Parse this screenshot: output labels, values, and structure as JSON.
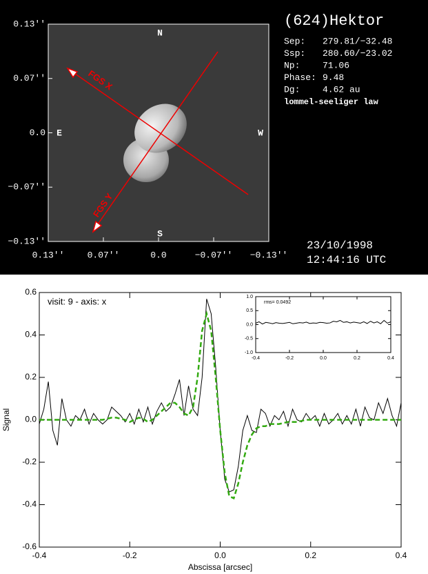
{
  "image_panel": {
    "title": "(624)Hektor",
    "info": [
      {
        "label": "Sep:",
        "value": "279.81/−32.48"
      },
      {
        "label": "Ssp:",
        "value": "280.60/−23.02"
      },
      {
        "label": "Np:",
        "value": "71.06"
      },
      {
        "label": "Phase:",
        "value": "9.48"
      },
      {
        "label": "Dg:",
        "value": "4.62 au"
      }
    ],
    "law": "lommel-seeliger law",
    "compass": {
      "n": "N",
      "s": "S",
      "e": "E",
      "w": "W"
    },
    "fgs_x": "FGS X",
    "fgs_y": "FGS Y",
    "xlim": [
      0.13,
      -0.13
    ],
    "ylim": [
      -0.13,
      0.13
    ],
    "xticks": [
      {
        "value": 0.13,
        "label": "0.13''"
      },
      {
        "value": 0.065,
        "label": "0.07''"
      },
      {
        "value": 0,
        "label": "0.0"
      },
      {
        "value": -0.065,
        "label": "−0.07''"
      },
      {
        "value": -0.13,
        "label": "−0.13''"
      }
    ],
    "yticks": [
      {
        "value": 0.13,
        "label": "0.13''"
      },
      {
        "value": 0.065,
        "label": "0.07''"
      },
      {
        "value": 0,
        "label": "0.0"
      },
      {
        "value": -0.065,
        "label": "−0.07''"
      },
      {
        "value": -0.13,
        "label": "−0.13''"
      }
    ],
    "date": "23/10/1998",
    "time": "12:44:16 UTC"
  },
  "chart_data": [
    {
      "type": "line",
      "annotation": "visit: 9 - axis: x",
      "xlabel": "Abscissa [arcsec]",
      "ylabel": "Signal",
      "xlim": [
        -0.4,
        0.4
      ],
      "ylim": [
        -0.6,
        0.6
      ],
      "xticks": [
        -0.4,
        -0.2,
        {
          "value": 0,
          "label": "0.0"
        },
        0.2,
        0.4
      ],
      "yticks": [
        -0.6,
        -0.4,
        -0.2,
        {
          "value": 0,
          "label": "0.0"
        },
        0.2,
        0.4,
        0.6
      ],
      "x": [
        -0.4,
        -0.39,
        -0.38,
        -0.37,
        -0.36,
        -0.35,
        -0.34,
        -0.33,
        -0.32,
        -0.31,
        -0.3,
        -0.29,
        -0.28,
        -0.27,
        -0.26,
        -0.25,
        -0.24,
        -0.23,
        -0.22,
        -0.21,
        -0.2,
        -0.19,
        -0.18,
        -0.17,
        -0.16,
        -0.15,
        -0.14,
        -0.13,
        -0.12,
        -0.11,
        -0.1,
        -0.09,
        -0.08,
        -0.07,
        -0.06,
        -0.05,
        -0.04,
        -0.03,
        -0.02,
        -0.01,
        0,
        0.01,
        0.02,
        0.03,
        0.04,
        0.05,
        0.06,
        0.07,
        0.08,
        0.09,
        0.1,
        0.11,
        0.12,
        0.13,
        0.14,
        0.15,
        0.16,
        0.17,
        0.18,
        0.19,
        0.2,
        0.21,
        0.22,
        0.23,
        0.24,
        0.25,
        0.26,
        0.27,
        0.28,
        0.29,
        0.3,
        0.31,
        0.32,
        0.33,
        0.34,
        0.35,
        0.36,
        0.37,
        0.38,
        0.39,
        0.4
      ],
      "series": [
        {
          "color": "#000000",
          "style": "solid",
          "width": 1,
          "values": [
            -0.02,
            0.05,
            0.18,
            -0.05,
            -0.12,
            0.1,
            0,
            -0.03,
            0.02,
            0,
            0.05,
            -0.02,
            0.03,
            0,
            -0.02,
            0,
            0.06,
            0.04,
            0.02,
            -0.01,
            0.03,
            -0.02,
            0.05,
            -0.01,
            0.06,
            -0.02,
            0.04,
            0.08,
            0.04,
            0.06,
            0.12,
            0.19,
            0.02,
            0.16,
            0.05,
            0.02,
            0.2,
            0.57,
            0.5,
            0.25,
            -0.05,
            -0.28,
            -0.34,
            -0.33,
            -0.22,
            -0.05,
            0.02,
            -0.05,
            -0.06,
            0.05,
            0.03,
            -0.03,
            0.02,
            0,
            0.04,
            -0.03,
            0.05,
            0,
            -0.01,
            0.03,
            0,
            0.02,
            -0.03,
            0.03,
            -0.02,
            0,
            0.03,
            -0.02,
            0.02,
            -0.02,
            0.05,
            -0.03,
            0.06,
            0.01,
            0,
            0.08,
            0.03,
            0.1,
            0.02,
            -0.03,
            0.08
          ]
        },
        {
          "color": "#33aa11",
          "style": "dashed",
          "width": 2.5,
          "values": [
            0,
            0,
            0,
            0,
            0,
            0,
            0,
            0,
            0,
            0,
            0,
            0,
            0,
            0,
            0,
            0.005,
            0.01,
            0.01,
            0.005,
            0,
            -0.01,
            0,
            0.01,
            0.005,
            -0.01,
            0,
            0.02,
            0.04,
            0.06,
            0.08,
            0.08,
            0.06,
            0.03,
            0.02,
            0.06,
            0.2,
            0.42,
            0.5,
            0.42,
            0.2,
            -0.05,
            -0.25,
            -0.36,
            -0.37,
            -0.3,
            -0.2,
            -0.12,
            -0.07,
            -0.04,
            -0.03,
            -0.03,
            -0.02,
            -0.02,
            -0.02,
            -0.015,
            -0.01,
            -0.01,
            -0.01,
            -0.005,
            0,
            0,
            0,
            0,
            0,
            0,
            0,
            0,
            0,
            0,
            0,
            0,
            0,
            0,
            0,
            0,
            0,
            0,
            0,
            0,
            0,
            0
          ]
        }
      ]
    },
    {
      "type": "line",
      "annotation": "rms= 0.0492",
      "xlim": [
        -0.4,
        0.4
      ],
      "ylim": [
        -1,
        1
      ],
      "xticks": [
        -0.4,
        -0.2,
        {
          "value": 0,
          "label": "0.0"
        },
        0.2,
        0.4
      ],
      "yticks": [
        {
          "value": -1,
          "label": "-1.0"
        },
        -0.5,
        {
          "value": 0,
          "label": "0.0"
        },
        0.5,
        {
          "value": 1,
          "label": "1.0"
        }
      ],
      "x": [
        -0.4,
        -0.38,
        -0.36,
        -0.34,
        -0.32,
        -0.3,
        -0.28,
        -0.26,
        -0.24,
        -0.22,
        -0.2,
        -0.18,
        -0.16,
        -0.14,
        -0.12,
        -0.1,
        -0.08,
        -0.06,
        -0.04,
        -0.02,
        0,
        0.02,
        0.04,
        0.06,
        0.08,
        0.1,
        0.12,
        0.14,
        0.16,
        0.18,
        0.2,
        0.22,
        0.24,
        0.26,
        0.28,
        0.3,
        0.32,
        0.34,
        0.36,
        0.38,
        0.4
      ],
      "series": [
        {
          "color": "#000000",
          "style": "solid",
          "width": 1,
          "values": [
            0.05,
            0.1,
            0.02,
            0.08,
            0.06,
            0.03,
            0.07,
            0.05,
            0.04,
            0.06,
            0.08,
            0.03,
            0.05,
            0.07,
            0.06,
            0.09,
            0.04,
            0.06,
            0.05,
            0.08,
            0.07,
            0.05,
            0.06,
            0.12,
            0.1,
            0.15,
            0.08,
            0.1,
            0.06,
            0.09,
            0.07,
            0.05,
            0.1,
            0.04,
            0.12,
            0.06,
            0.1,
            0.03,
            0.15,
            0.05,
            0.1
          ]
        }
      ]
    }
  ]
}
